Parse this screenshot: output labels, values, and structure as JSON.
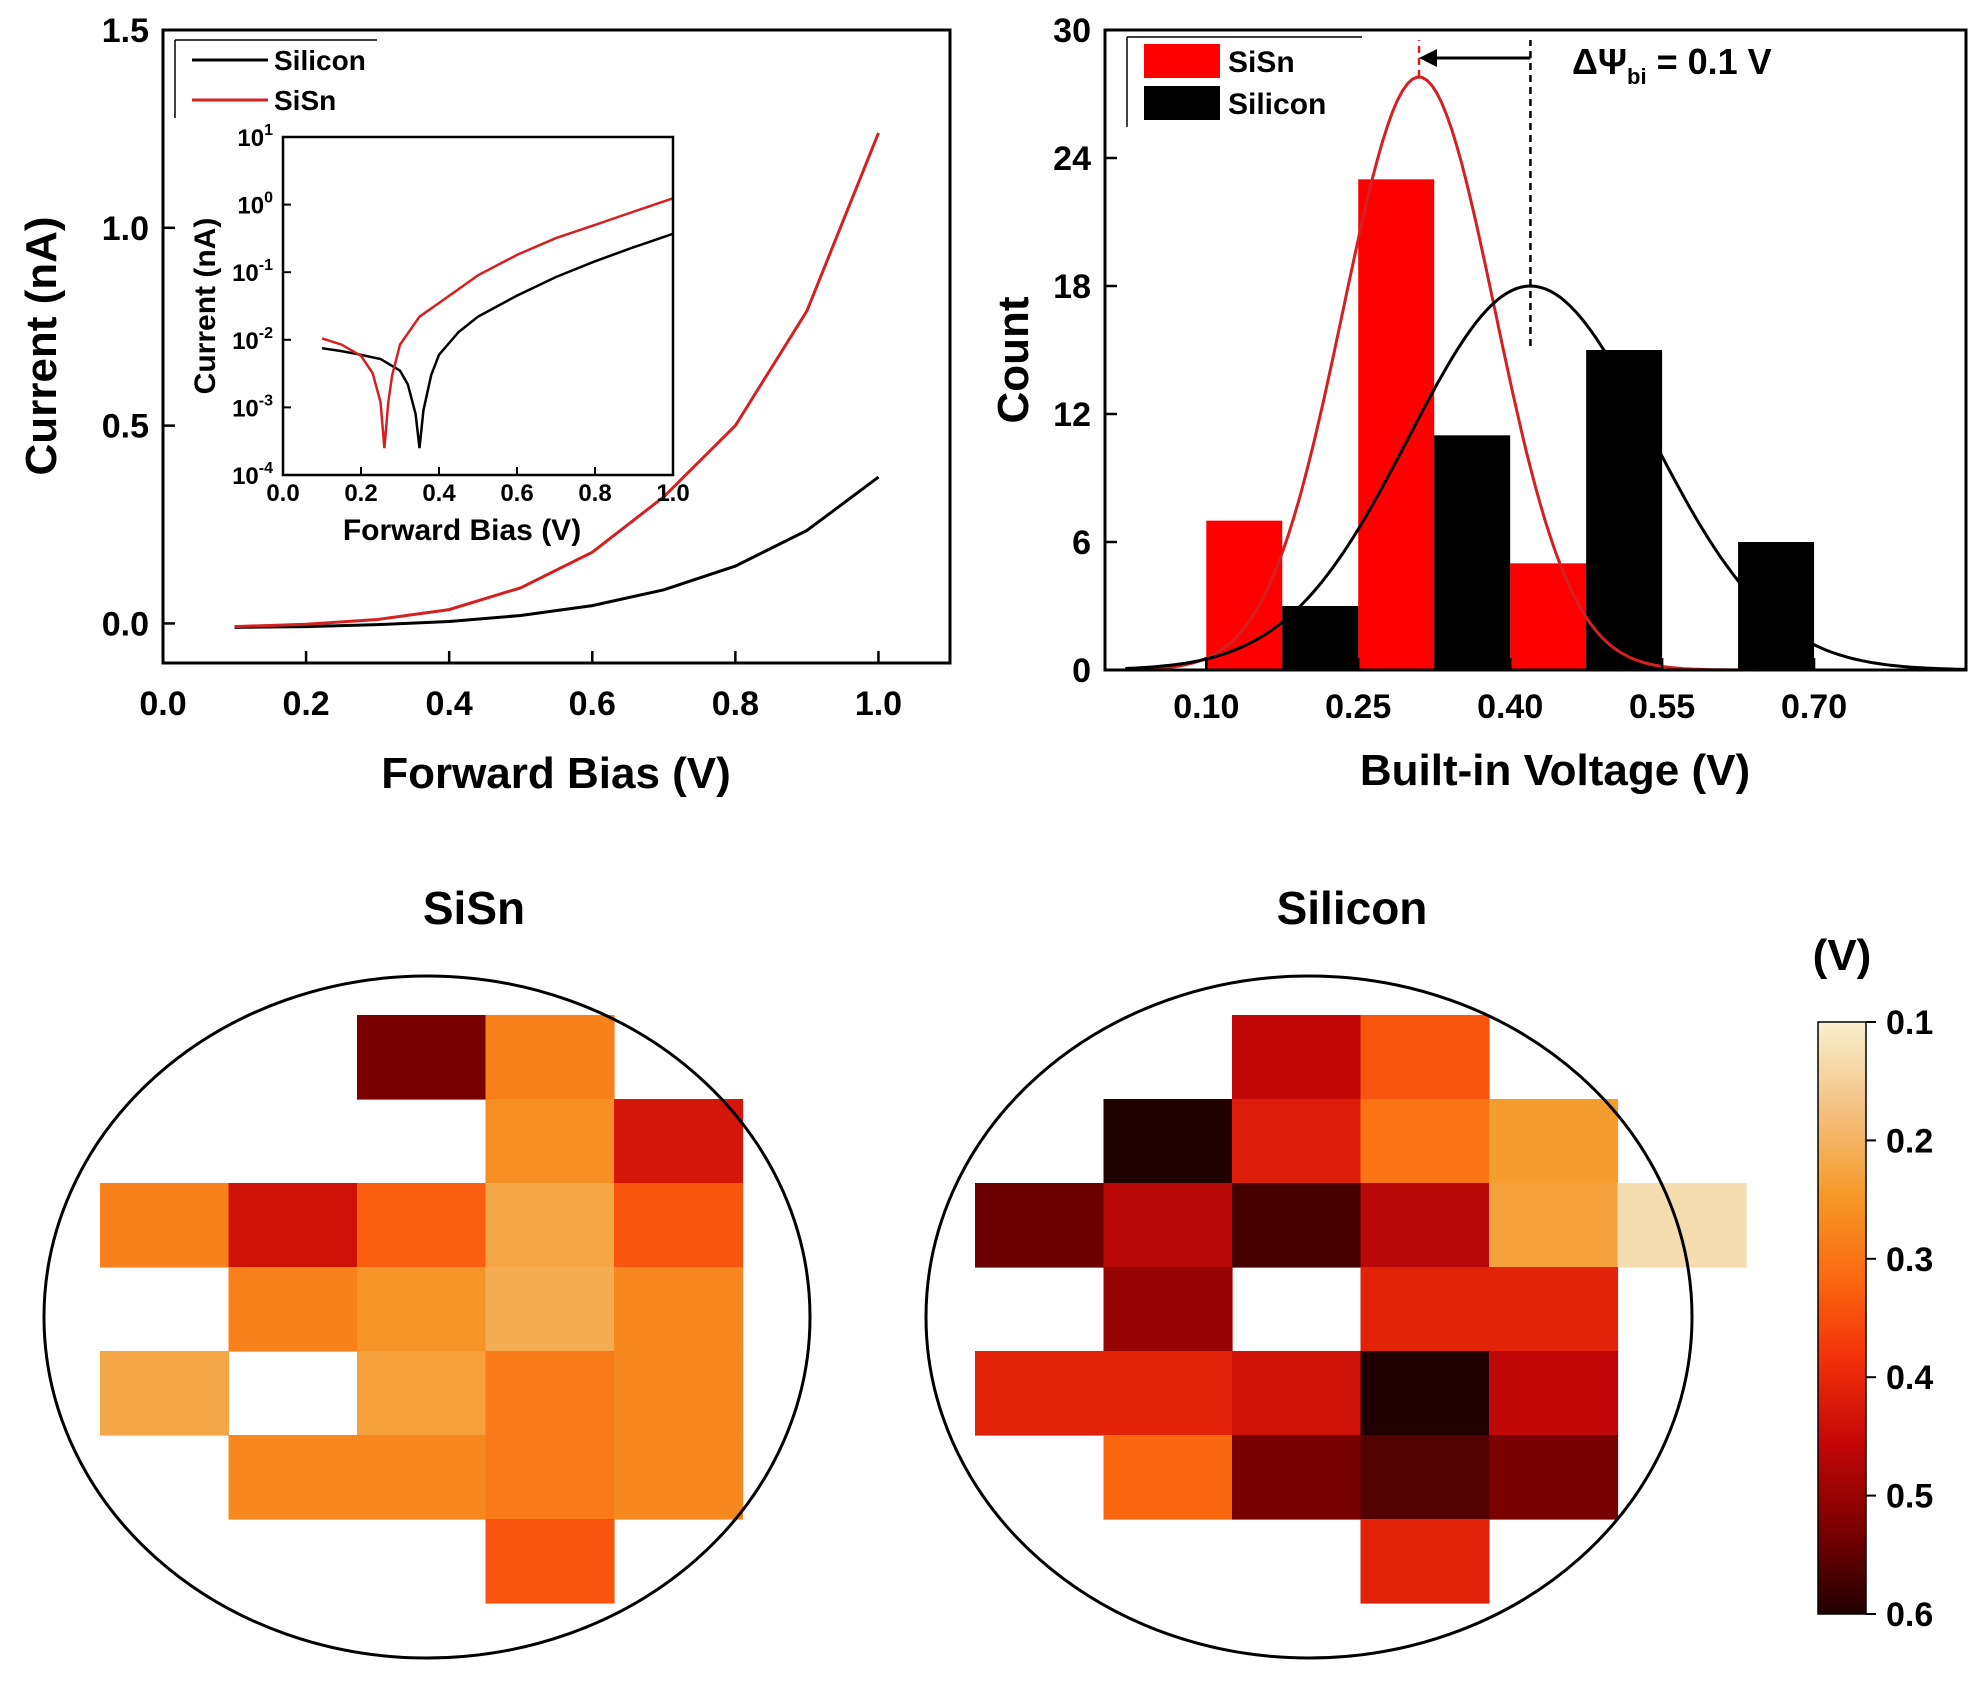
{
  "colors": {
    "silicon": "#000000",
    "sisn": "#d42020",
    "sisn_bar": "#ff0000",
    "silicon_bar": "#000000",
    "colormap": [
      "#f7f0cf",
      "#f4c386",
      "#f59a2a",
      "#fb6a10",
      "#f2300a",
      "#c40808",
      "#7a0000",
      "#200000"
    ]
  },
  "chart_data": [
    {
      "id": "iv",
      "type": "line",
      "xlabel": "Forward Bias (V)",
      "ylabel": "Current (nA)",
      "xlim": [
        0.0,
        1.1
      ],
      "ylim": [
        -0.1,
        1.5
      ],
      "xticks": [
        0.0,
        0.2,
        0.4,
        0.6,
        0.8,
        1.0
      ],
      "xtick_labels": [
        "0.0",
        "0.2",
        "0.4",
        "0.6",
        "0.8",
        "1.0"
      ],
      "yticks": [
        0.0,
        0.5,
        1.0,
        1.5
      ],
      "ytick_labels": [
        "0.0",
        "0.5",
        "1.0",
        "1.5"
      ],
      "legend": {
        "position": "top-left",
        "entries": [
          "Silicon",
          "SiSn"
        ]
      },
      "series": [
        {
          "name": "Silicon",
          "color_key": "silicon",
          "x": [
            0.1,
            0.2,
            0.3,
            0.4,
            0.5,
            0.6,
            0.7,
            0.8,
            0.9,
            1.0
          ],
          "y": [
            -0.01,
            -0.008,
            -0.003,
            0.005,
            0.02,
            0.045,
            0.085,
            0.145,
            0.235,
            0.37
          ]
        },
        {
          "name": "SiSn",
          "color_key": "sisn",
          "x": [
            0.1,
            0.2,
            0.3,
            0.4,
            0.5,
            0.6,
            0.7,
            0.8,
            0.9,
            1.0
          ],
          "y": [
            -0.008,
            -0.002,
            0.01,
            0.035,
            0.09,
            0.18,
            0.32,
            0.5,
            0.79,
            1.24
          ]
        }
      ],
      "inset": {
        "xlabel": "Forward Bias (V)",
        "ylabel": "Current (nA)",
        "xlim": [
          0.0,
          1.0
        ],
        "ylim_log10": [
          -4,
          1
        ],
        "xticks": [
          0.0,
          0.2,
          0.4,
          0.6,
          0.8,
          1.0
        ],
        "xtick_labels": [
          "0.0",
          "0.2",
          "0.4",
          "0.6",
          "0.8",
          "1.0"
        ],
        "ytick_base_labels": [
          "10",
          "10",
          "10",
          "10",
          "10",
          "10"
        ],
        "ytick_exponents": [
          "-4",
          "-3",
          "-2",
          "-1",
          "0",
          "1"
        ],
        "series": [
          {
            "name": "Silicon",
            "color_key": "silicon",
            "x": [
              0.1,
              0.15,
              0.2,
              0.25,
              0.3,
              0.32,
              0.34,
              0.35,
              0.36,
              0.38,
              0.4,
              0.45,
              0.5,
              0.6,
              0.7,
              0.8,
              0.9,
              1.0
            ],
            "y": [
              0.0075,
              0.0068,
              0.006,
              0.0052,
              0.0035,
              0.0022,
              0.0008,
              0.00025,
              0.0009,
              0.003,
              0.006,
              0.013,
              0.022,
              0.045,
              0.085,
              0.145,
              0.235,
              0.37
            ]
          },
          {
            "name": "SiSn",
            "color_key": "sisn",
            "x": [
              0.1,
              0.15,
              0.2,
              0.23,
              0.25,
              0.26,
              0.27,
              0.28,
              0.3,
              0.35,
              0.4,
              0.5,
              0.6,
              0.7,
              0.8,
              0.9,
              1.0
            ],
            "y": [
              0.0105,
              0.0085,
              0.0058,
              0.0032,
              0.0012,
              0.00025,
              0.0012,
              0.003,
              0.0085,
              0.022,
              0.035,
              0.09,
              0.18,
              0.32,
              0.5,
              0.79,
              1.24
            ]
          }
        ]
      }
    },
    {
      "id": "hist",
      "type": "bar",
      "xlabel": "Built-in Voltage (V)",
      "ylabel": "Count",
      "xlim": [
        0.0,
        0.85
      ],
      "ylim": [
        0,
        30
      ],
      "xticks": [
        0.1,
        0.25,
        0.4,
        0.55,
        0.7
      ],
      "xtick_labels": [
        "0.10",
        "0.25",
        "0.40",
        "0.55",
        "0.70"
      ],
      "yticks": [
        0,
        6,
        12,
        18,
        24,
        30
      ],
      "ytick_labels": [
        "0",
        "6",
        "12",
        "18",
        "24",
        "30"
      ],
      "bin_width": 0.075,
      "legend": {
        "position": "top-left",
        "entries": [
          "SiSn",
          "Silicon"
        ]
      },
      "series": [
        {
          "name": "SiSn",
          "color_key": "sisn_bar",
          "bin_centers": [
            0.1375,
            0.2875,
            0.4375
          ],
          "values": [
            7,
            23,
            5
          ]
        },
        {
          "name": "Silicon",
          "color_key": "silicon_bar",
          "bin_centers": [
            0.2125,
            0.3625,
            0.5125,
            0.6625
          ],
          "values": [
            3,
            11,
            15,
            6
          ]
        }
      ],
      "fits": [
        {
          "name": "SiSn",
          "color_key": "sisn",
          "mean": 0.31,
          "sigma": 0.075,
          "amplitude": 27.8
        },
        {
          "name": "Silicon",
          "color_key": "silicon",
          "mean": 0.42,
          "sigma": 0.12,
          "amplitude": 18
        }
      ],
      "annotation": {
        "prefix": "ΔΨ",
        "subscript": "bi",
        "suffix": " = 0.1 V",
        "from": 0.42,
        "to": 0.31
      }
    },
    {
      "id": "map-sisn",
      "type": "heatmap",
      "title": "SiSn",
      "grid": [
        [
          null,
          null,
          0.53,
          0.28,
          null
        ],
        [
          null,
          null,
          null,
          0.26,
          0.43
        ],
        [
          0.28,
          0.44,
          0.33,
          0.22,
          0.34
        ],
        [
          null,
          0.28,
          0.25,
          0.21,
          0.27
        ],
        [
          0.22,
          null,
          0.23,
          0.29,
          0.27
        ],
        [
          null,
          0.27,
          0.27,
          0.29,
          0.27
        ],
        [
          null,
          null,
          null,
          0.34,
          null
        ]
      ]
    },
    {
      "id": "map-silicon",
      "type": "heatmap",
      "title": "Silicon",
      "grid": [
        [
          null,
          null,
          0.46,
          0.34,
          null,
          null
        ],
        [
          null,
          0.6,
          0.42,
          0.3,
          0.24,
          null
        ],
        [
          0.54,
          0.47,
          0.57,
          0.47,
          0.23,
          0.13
        ],
        [
          null,
          0.5,
          null,
          0.41,
          0.41,
          null
        ],
        [
          0.41,
          0.41,
          0.44,
          0.6,
          0.46,
          null
        ],
        [
          null,
          0.32,
          0.53,
          0.56,
          0.53,
          null
        ],
        [
          null,
          null,
          null,
          0.41,
          null,
          null
        ]
      ]
    },
    {
      "id": "colorbar",
      "type": "colorbar",
      "unit_label": "(V)",
      "range": [
        0.1,
        0.6
      ],
      "ticks": [
        0.1,
        0.2,
        0.3,
        0.4,
        0.5,
        0.6
      ],
      "tick_labels": [
        "0.1",
        "0.2",
        "0.3",
        "0.4",
        "0.5",
        "0.6"
      ]
    }
  ]
}
